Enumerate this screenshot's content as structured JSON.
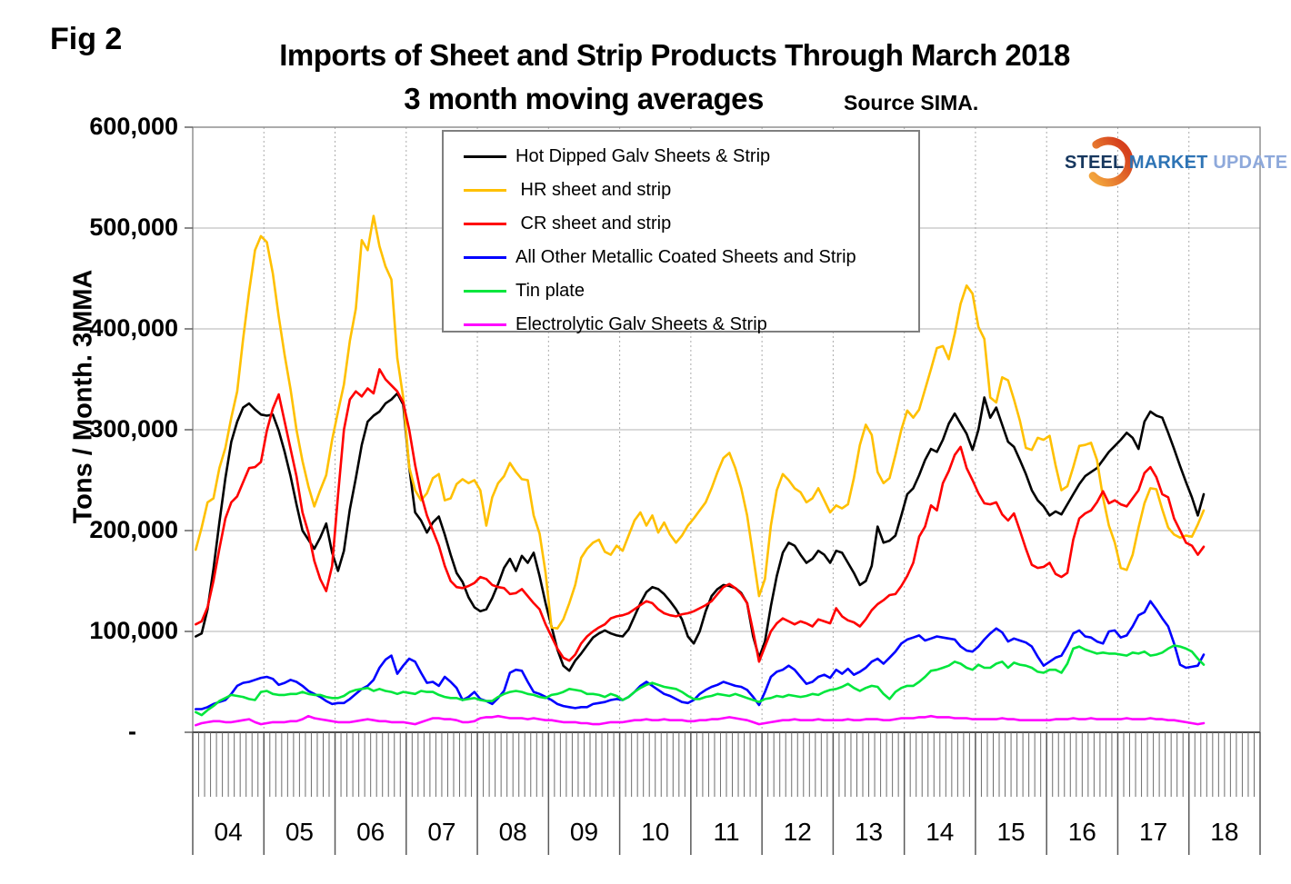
{
  "fig_label": "Fig 2",
  "title": {
    "line1": "Imports of Sheet and Strip Products Through March 2018",
    "line2": "3 month moving averages",
    "source": "Source SIMA."
  },
  "y_axis": {
    "label": "Tons / Month. 3MMA",
    "ticks": [
      "600,000",
      "500,000",
      "400,000",
      "300,000",
      "200,000",
      "100,000",
      "-"
    ]
  },
  "x_axis": {
    "years": [
      "04",
      "05",
      "06",
      "07",
      "08",
      "09",
      "10",
      "11",
      "12",
      "13",
      "14",
      "15",
      "16",
      "17",
      "18"
    ]
  },
  "legend": [
    {
      "label": "Hot Dipped Galv Sheets & Strip",
      "color": "#000000"
    },
    {
      "label": " HR sheet and strip",
      "color": "#FFC000"
    },
    {
      "label": " CR sheet and strip",
      "color": "#FF0000"
    },
    {
      "label": "All Other Metallic Coated Sheets and Strip",
      "color": "#0000FF"
    },
    {
      "label": "Tin plate",
      "color": "#00E63C"
    },
    {
      "label": "Electrolytic Galv Sheets & Strip",
      "color": "#FF00FF"
    }
  ],
  "logo": {
    "steel": "STEEL",
    "market": " MARKET",
    "update": " UPDATE",
    "crescent_colors": [
      "#F2A33C",
      "#D6401D"
    ]
  },
  "chart_data": {
    "type": "line",
    "title": "Imports of Sheet and Strip Products Through March 2018",
    "subtitle": "3 month moving averages",
    "source": "Source SIMA.",
    "ylabel": "Tons / Month. 3MMA",
    "ylim": [
      0,
      600000
    ],
    "grid": true,
    "legend_position": "top-left-inset",
    "frequency": "monthly",
    "x_start": "2004-01",
    "x_end": "2018-03",
    "values_unit": "thousand tons per month (3MMA)",
    "series": [
      {
        "name": "Hot Dipped Galv Sheets & Strip",
        "color": "#000000",
        "values": [
          95,
          98,
          122,
          162,
          208,
          252,
          288,
          308,
          322,
          326,
          320,
          315,
          314,
          315,
          299,
          278,
          254,
          226,
          200,
          191,
          182,
          193,
          207,
          178,
          160,
          180,
          221,
          252,
          285,
          308,
          314,
          318,
          326,
          330,
          336,
          325,
          263,
          218,
          210,
          198,
          208,
          214,
          196,
          176,
          158,
          149,
          134,
          124,
          120,
          122,
          133,
          147,
          163,
          172,
          160,
          175,
          168,
          178,
          155,
          128,
          105,
          82,
          66,
          61,
          71,
          78,
          86,
          94,
          98,
          101,
          98,
          96,
          95,
          102,
          115,
          128,
          139,
          144,
          142,
          137,
          130,
          122,
          112,
          95,
          88,
          100,
          120,
          135,
          142,
          146,
          145,
          143,
          138,
          128,
          95,
          74,
          90,
          125,
          155,
          178,
          188,
          185,
          176,
          168,
          172,
          180,
          176,
          168,
          180,
          178,
          168,
          158,
          146,
          150,
          165,
          204,
          188,
          190,
          195,
          215,
          236,
          242,
          255,
          270,
          281,
          278,
          290,
          306,
          316,
          306,
          296,
          280,
          300,
          332,
          312,
          322,
          305,
          288,
          283,
          270,
          256,
          240,
          230,
          224,
          215,
          219,
          216,
          226,
          236,
          246,
          254,
          258,
          262,
          270,
          278,
          284,
          290,
          297,
          292,
          281,
          308,
          318,
          314,
          312,
          297,
          281,
          264,
          248,
          233,
          215,
          236
        ]
      },
      {
        "name": "HR sheet and strip",
        "color": "#FFC000",
        "values": [
          181,
          203,
          228,
          232,
          262,
          282,
          312,
          338,
          390,
          437,
          478,
          492,
          486,
          455,
          412,
          374,
          340,
          300,
          269,
          244,
          224,
          240,
          255,
          290,
          318,
          345,
          388,
          420,
          488,
          478,
          512,
          482,
          462,
          449,
          371,
          332,
          263,
          240,
          230,
          237,
          252,
          256,
          230,
          232,
          246,
          251,
          247,
          250,
          240,
          205,
          233,
          247,
          254,
          267,
          258,
          251,
          250,
          215,
          197,
          158,
          104,
          103,
          112,
          128,
          146,
          173,
          182,
          188,
          191,
          179,
          176,
          185,
          180,
          195,
          210,
          218,
          205,
          215,
          198,
          208,
          196,
          188,
          195,
          205,
          212,
          220,
          228,
          242,
          258,
          272,
          277,
          262,
          242,
          215,
          175,
          135,
          152,
          205,
          240,
          256,
          250,
          242,
          238,
          228,
          232,
          242,
          230,
          218,
          225,
          222,
          226,
          252,
          285,
          305,
          295,
          258,
          247,
          252,
          275,
          300,
          319,
          312,
          320,
          340,
          360,
          381,
          383,
          370,
          395,
          425,
          443,
          435,
          402,
          390,
          332,
          327,
          352,
          349,
          330,
          309,
          282,
          280,
          292,
          290,
          294,
          265,
          240,
          244,
          263,
          284,
          285,
          287,
          270,
          233,
          205,
          188,
          163,
          161,
          176,
          203,
          227,
          242,
          241,
          221,
          203,
          196,
          193,
          195,
          194,
          206,
          220
        ]
      },
      {
        "name": "CR sheet and strip",
        "color": "#FF0000",
        "values": [
          107,
          110,
          124,
          150,
          182,
          212,
          228,
          234,
          248,
          262,
          263,
          268,
          299,
          321,
          335,
          308,
          281,
          254,
          218,
          198,
          170,
          152,
          140,
          165,
          235,
          300,
          330,
          338,
          333,
          341,
          336,
          360,
          350,
          344,
          338,
          327,
          300,
          265,
          236,
          215,
          200,
          185,
          165,
          150,
          144,
          143,
          145,
          148,
          154,
          152,
          146,
          144,
          143,
          137,
          138,
          142,
          135,
          128,
          122,
          107,
          95,
          83,
          74,
          71,
          77,
          88,
          95,
          100,
          104,
          107,
          113,
          115,
          116,
          118,
          122,
          126,
          130,
          128,
          122,
          118,
          116,
          115,
          117,
          118,
          120,
          123,
          126,
          130,
          137,
          144,
          147,
          143,
          137,
          128,
          100,
          70,
          85,
          100,
          108,
          113,
          110,
          107,
          110,
          108,
          105,
          112,
          110,
          108,
          123,
          115,
          111,
          109,
          105,
          112,
          121,
          127,
          131,
          136,
          137,
          145,
          155,
          168,
          194,
          204,
          225,
          220,
          247,
          259,
          275,
          283,
          262,
          250,
          237,
          227,
          226,
          228,
          216,
          210,
          217,
          200,
          182,
          166,
          163,
          164,
          168,
          157,
          154,
          158,
          191,
          212,
          217,
          220,
          228,
          239,
          227,
          230,
          226,
          224,
          232,
          240,
          257,
          263,
          253,
          236,
          233,
          212,
          200,
          188,
          185,
          176,
          184
        ]
      },
      {
        "name": "All Other Metallic Coated Sheets and Strip",
        "color": "#0000FF",
        "values": [
          23,
          23,
          25,
          28,
          30,
          32,
          38,
          46,
          49,
          50,
          52,
          54,
          55,
          53,
          47,
          49,
          52,
          50,
          46,
          41,
          38,
          35,
          31,
          28,
          29,
          29,
          33,
          38,
          43,
          46,
          52,
          64,
          72,
          76,
          58,
          66,
          73,
          70,
          59,
          49,
          50,
          46,
          55,
          50,
          44,
          32,
          35,
          40,
          33,
          31,
          28,
          34,
          41,
          59,
          62,
          61,
          50,
          40,
          38,
          35,
          32,
          28,
          26,
          25,
          24,
          25,
          25,
          28,
          29,
          30,
          32,
          33,
          32,
          35,
          40,
          46,
          50,
          46,
          42,
          38,
          36,
          33,
          30,
          29,
          32,
          38,
          42,
          45,
          47,
          50,
          48,
          46,
          45,
          42,
          35,
          27,
          40,
          55,
          60,
          62,
          66,
          62,
          55,
          48,
          50,
          55,
          57,
          54,
          62,
          58,
          63,
          57,
          60,
          64,
          70,
          73,
          68,
          74,
          80,
          88,
          92,
          94,
          96,
          91,
          93,
          95,
          94,
          93,
          92,
          85,
          81,
          80,
          85,
          92,
          98,
          103,
          99,
          90,
          93,
          91,
          89,
          85,
          75,
          66,
          70,
          74,
          76,
          86,
          98,
          101,
          95,
          94,
          90,
          88,
          100,
          101,
          94,
          96,
          105,
          116,
          119,
          130,
          122,
          113,
          105,
          88,
          67,
          64,
          65,
          66,
          77
        ]
      },
      {
        "name": "Tin plate",
        "color": "#00E63C",
        "values": [
          20,
          17,
          22,
          26,
          31,
          34,
          37,
          36,
          35,
          33,
          32,
          40,
          41,
          38,
          37,
          37,
          38,
          38,
          40,
          38,
          37,
          37,
          35,
          34,
          34,
          36,
          40,
          42,
          43,
          44,
          41,
          43,
          41,
          40,
          38,
          40,
          39,
          38,
          41,
          40,
          40,
          37,
          35,
          34,
          34,
          32,
          33,
          34,
          32,
          31,
          31,
          35,
          38,
          40,
          41,
          40,
          38,
          37,
          35,
          34,
          37,
          38,
          40,
          43,
          42,
          41,
          38,
          38,
          37,
          35,
          38,
          36,
          32,
          35,
          40,
          44,
          47,
          49,
          47,
          45,
          44,
          43,
          40,
          36,
          33,
          33,
          35,
          36,
          38,
          37,
          36,
          38,
          36,
          34,
          32,
          30,
          33,
          34,
          36,
          35,
          37,
          36,
          35,
          36,
          38,
          37,
          40,
          42,
          43,
          45,
          48,
          44,
          41,
          44,
          46,
          45,
          38,
          33,
          40,
          44,
          46,
          46,
          50,
          55,
          61,
          62,
          64,
          66,
          70,
          68,
          64,
          62,
          67,
          64,
          64,
          68,
          70,
          64,
          69,
          67,
          66,
          64,
          60,
          59,
          62,
          62,
          59,
          68,
          83,
          85,
          82,
          80,
          78,
          79,
          78,
          78,
          77,
          76,
          79,
          78,
          80,
          76,
          77,
          79,
          83,
          86,
          85,
          83,
          80,
          73,
          67
        ]
      },
      {
        "name": "Electrolytic Galv Sheets & Strip",
        "color": "#FF00FF",
        "values": [
          7,
          9,
          10,
          11,
          11,
          10,
          10,
          11,
          12,
          13,
          10,
          8,
          9,
          10,
          10,
          10,
          11,
          11,
          13,
          16,
          14,
          13,
          12,
          11,
          10,
          10,
          10,
          11,
          12,
          13,
          12,
          11,
          11,
          10,
          10,
          10,
          9,
          8,
          10,
          12,
          14,
          14,
          13,
          13,
          12,
          10,
          10,
          11,
          14,
          15,
          15,
          16,
          15,
          14,
          14,
          14,
          13,
          14,
          13,
          12,
          12,
          11,
          10,
          10,
          10,
          9,
          9,
          8,
          8,
          9,
          10,
          10,
          10,
          11,
          12,
          12,
          13,
          12,
          12,
          13,
          12,
          12,
          12,
          11,
          11,
          12,
          12,
          13,
          13,
          14,
          15,
          14,
          13,
          12,
          10,
          8,
          9,
          10,
          11,
          12,
          12,
          13,
          12,
          12,
          12,
          13,
          12,
          12,
          12,
          12,
          13,
          12,
          12,
          13,
          13,
          13,
          12,
          12,
          13,
          14,
          14,
          14,
          15,
          15,
          16,
          15,
          15,
          15,
          14,
          14,
          14,
          13,
          13,
          13,
          13,
          13,
          14,
          13,
          13,
          12,
          12,
          12,
          12,
          12,
          12,
          13,
          13,
          13,
          14,
          13,
          13,
          14,
          13,
          13,
          13,
          13,
          13,
          14,
          13,
          13,
          13,
          14,
          13,
          13,
          12,
          12,
          11,
          10,
          9,
          8,
          9
        ]
      }
    ]
  }
}
